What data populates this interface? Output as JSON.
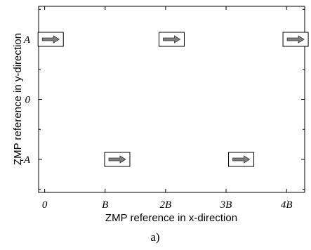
{
  "chart_data": {
    "type": "scatter",
    "xlabel": "ZMP reference in x-direction",
    "ylabel": "ZMP reference in y-direction",
    "caption": "a)",
    "xlim": [
      -0.1,
      4.3
    ],
    "ylim": [
      -1.55,
      1.55
    ],
    "x_ticks": [
      {
        "value": 0,
        "label": "0"
      },
      {
        "value": 1,
        "label": "B"
      },
      {
        "value": 2,
        "label": "2B"
      },
      {
        "value": 3,
        "label": "3B"
      },
      {
        "value": 4,
        "label": "4B"
      }
    ],
    "y_ticks": [
      {
        "value": 1,
        "label": "A"
      },
      {
        "value": 0,
        "label": "0"
      },
      {
        "value": -1,
        "label": "-A"
      }
    ],
    "marker": "right-arrow-box",
    "marker_color": "#808080",
    "points": [
      {
        "x": 0.1,
        "y": 1
      },
      {
        "x": 1.2,
        "y": -1
      },
      {
        "x": 2.1,
        "y": 1
      },
      {
        "x": 3.25,
        "y": -1
      },
      {
        "x": 4.15,
        "y": 1
      }
    ]
  }
}
